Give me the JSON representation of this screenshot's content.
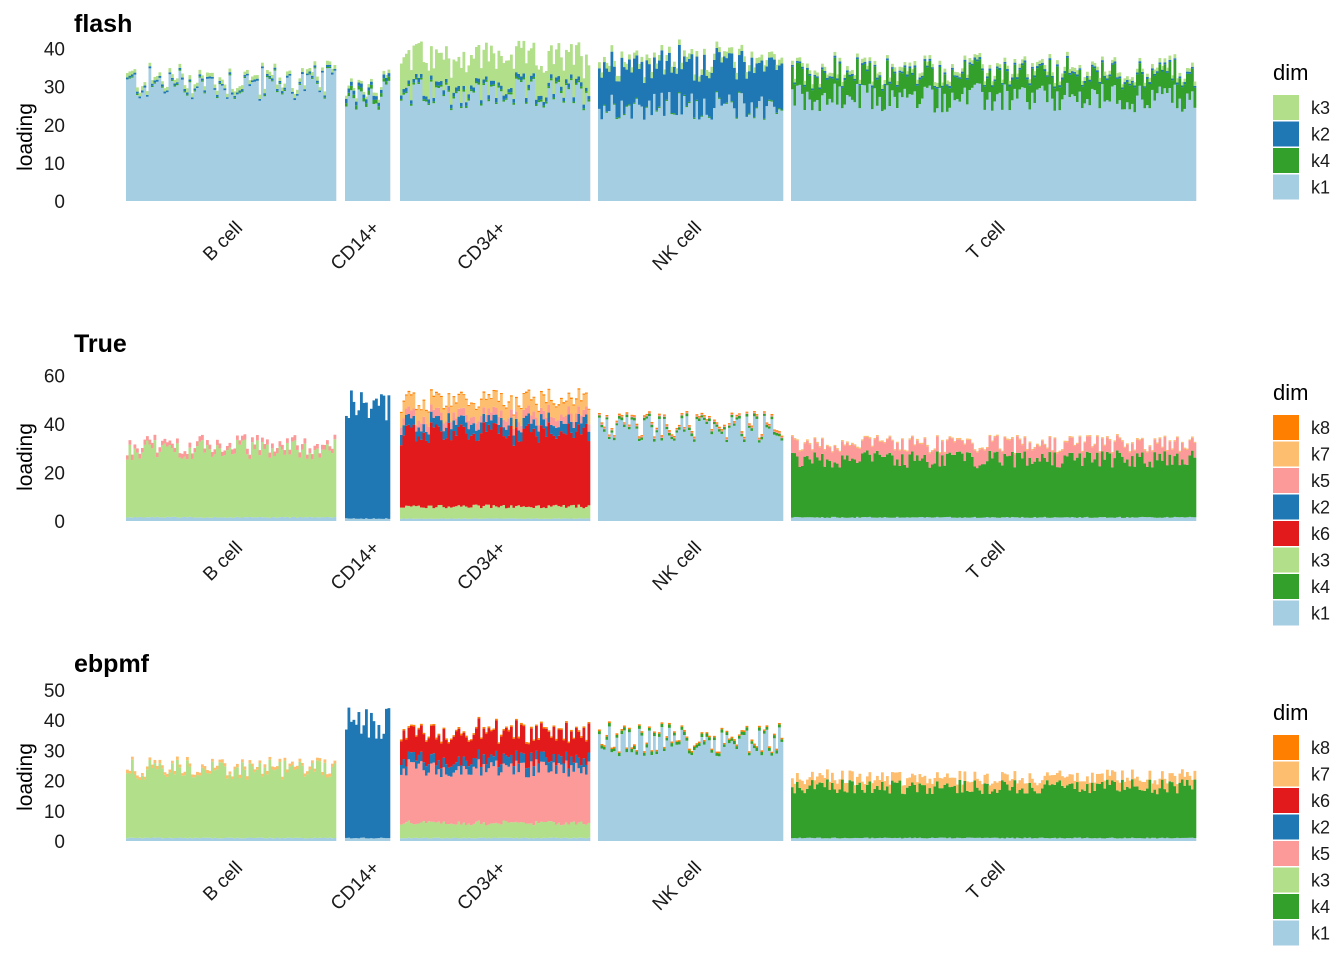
{
  "figure": {
    "groups": [
      "B cell",
      "CD14+",
      "CD34+",
      "NK cell",
      "T cell"
    ],
    "ylabel": "loading",
    "legend_title": "dim"
  },
  "colors": {
    "k1": "#A6CEE3",
    "k2": "#1F78B4",
    "k3": "#B2DF8A",
    "k4": "#33A02C",
    "k5": "#FB9A99",
    "k6": "#E31A1C",
    "k7": "#FDBF6F",
    "k8": "#FF7F00"
  },
  "chart_data": [
    {
      "type": "bar",
      "stacked": true,
      "title": "flash",
      "ylabel": "loading",
      "xlabel": "",
      "ylim": [
        0,
        42
      ],
      "yticks": [
        0,
        10,
        20,
        30,
        40
      ],
      "categories": [
        "B cell",
        "CD14+",
        "CD34+",
        "NK cell",
        "T cell"
      ],
      "legend": [
        "k3",
        "k2",
        "k4",
        "k1"
      ],
      "stack_order": [
        "k1",
        "k4",
        "k2",
        "k3"
      ],
      "series": [
        {
          "name": "k1",
          "values": [
            30.5,
            28,
            28,
            25,
            27
          ]
        },
        {
          "name": "k4",
          "values": [
            0.3,
            1,
            0.5,
            0.3,
            6
          ]
        },
        {
          "name": "k2",
          "values": [
            0.5,
            1,
            1,
            11,
            0.5
          ]
        },
        {
          "name": "k3",
          "values": [
            1,
            0.8,
            8,
            1.5,
            1
          ]
        }
      ]
    },
    {
      "type": "bar",
      "stacked": true,
      "title": "True",
      "ylabel": "loading",
      "xlabel": "",
      "ylim": [
        0,
        66
      ],
      "yticks": [
        0,
        20,
        40,
        60
      ],
      "categories": [
        "B cell",
        "CD14+",
        "CD34+",
        "NK cell",
        "T cell"
      ],
      "legend": [
        "k8",
        "k7",
        "k5",
        "k2",
        "k6",
        "k3",
        "k4",
        "k1"
      ],
      "stack_order": [
        "k1",
        "k4",
        "k3",
        "k6",
        "k2",
        "k5",
        "k7",
        "k8"
      ],
      "series": [
        {
          "name": "k1",
          "values": [
            1.5,
            1,
            1,
            38,
            1.5
          ]
        },
        {
          "name": "k4",
          "values": [
            0,
            0,
            0,
            1,
            24
          ]
        },
        {
          "name": "k3",
          "values": [
            28,
            0,
            5,
            0,
            0
          ]
        },
        {
          "name": "k6",
          "values": [
            0,
            0,
            30,
            0,
            0
          ]
        },
        {
          "name": "k2",
          "values": [
            0,
            46,
            4,
            0,
            0
          ]
        },
        {
          "name": "k5",
          "values": [
            2,
            0,
            3,
            0.5,
            6
          ]
        },
        {
          "name": "k7",
          "values": [
            0,
            0,
            6,
            0,
            0.5
          ]
        },
        {
          "name": "k8",
          "values": [
            0,
            0,
            0.5,
            0.5,
            0
          ]
        }
      ]
    },
    {
      "type": "bar",
      "stacked": true,
      "title": "ebpmf",
      "ylabel": "loading",
      "xlabel": "",
      "ylim": [
        0,
        53
      ],
      "yticks": [
        0,
        10,
        20,
        30,
        40,
        50
      ],
      "categories": [
        "B cell",
        "CD14+",
        "CD34+",
        "NK cell",
        "T cell"
      ],
      "legend": [
        "k8",
        "k7",
        "k6",
        "k2",
        "k5",
        "k3",
        "k4",
        "k1"
      ],
      "stack_order": [
        "k1",
        "k4",
        "k3",
        "k5",
        "k2",
        "k6",
        "k7",
        "k8"
      ],
      "series": [
        {
          "name": "k1",
          "values": [
            1,
            1,
            1,
            33,
            1
          ]
        },
        {
          "name": "k4",
          "values": [
            0,
            0,
            0,
            1,
            17
          ]
        },
        {
          "name": "k3",
          "values": [
            22.5,
            0,
            5,
            0,
            0
          ]
        },
        {
          "name": "k5",
          "values": [
            0,
            0,
            18,
            0,
            0
          ]
        },
        {
          "name": "k2",
          "values": [
            0,
            38,
            3,
            0,
            0
          ]
        },
        {
          "name": "k6",
          "values": [
            0,
            0,
            9,
            0,
            0
          ]
        },
        {
          "name": "k7",
          "values": [
            1,
            0,
            0,
            0,
            3
          ]
        },
        {
          "name": "k8",
          "values": [
            0,
            0,
            0.5,
            0.5,
            0
          ]
        }
      ]
    }
  ]
}
